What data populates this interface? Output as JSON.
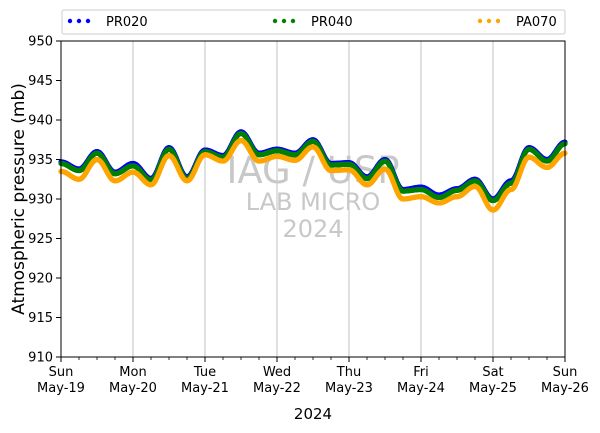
{
  "chart_data": {
    "type": "scatter",
    "ylabel": "Atmospheric pressure (mb)",
    "xlabel": "2024",
    "ylim": [
      910,
      950
    ],
    "yticks": [
      910,
      915,
      920,
      925,
      930,
      935,
      940,
      945,
      950
    ],
    "x_range_days": [
      "2024-05-19",
      "2024-05-26"
    ],
    "xtick_labels": [
      {
        "day": "Sun",
        "date": "May-19"
      },
      {
        "day": "Mon",
        "date": "May-20"
      },
      {
        "day": "Tue",
        "date": "May-21"
      },
      {
        "day": "Wed",
        "date": "May-22"
      },
      {
        "day": "Thu",
        "date": "May-23"
      },
      {
        "day": "Fri",
        "date": "May-24"
      },
      {
        "day": "Sat",
        "date": "May-25"
      },
      {
        "day": "Sun",
        "date": "May-26"
      }
    ],
    "grid": "vertical",
    "legend_position": "top",
    "watermark": [
      "IAG / USP",
      "LAB MICRO",
      "2024"
    ],
    "x_dates": [
      "2024-05-19 00:00",
      "2024-05-19 06:00",
      "2024-05-19 12:00",
      "2024-05-19 18:00",
      "2024-05-20 00:00",
      "2024-05-20 06:00",
      "2024-05-20 12:00",
      "2024-05-20 18:00",
      "2024-05-21 00:00",
      "2024-05-21 06:00",
      "2024-05-21 12:00",
      "2024-05-21 18:00",
      "2024-05-22 00:00",
      "2024-05-22 06:00",
      "2024-05-22 12:00",
      "2024-05-22 18:00",
      "2024-05-23 00:00",
      "2024-05-23 06:00",
      "2024-05-23 12:00",
      "2024-05-23 18:00",
      "2024-05-24 00:00",
      "2024-05-24 06:00",
      "2024-05-24 12:00",
      "2024-05-24 18:00",
      "2024-05-25 00:00",
      "2024-05-25 06:00",
      "2024-05-25 12:00",
      "2024-05-25 18:00",
      "2024-05-26 00:00"
    ],
    "series": [
      {
        "name": "PR020",
        "color": "#0000ff",
        "values": [
          934.7,
          933.8,
          936.0,
          933.4,
          934.5,
          932.6,
          936.5,
          932.8,
          936.2,
          935.5,
          938.5,
          935.8,
          936.3,
          935.8,
          937.5,
          934.5,
          934.6,
          932.8,
          935.0,
          931.2,
          931.5,
          930.5,
          931.3,
          932.5,
          930.0,
          932.3,
          936.5,
          935.0,
          937.2
        ]
      },
      {
        "name": "PR040",
        "color": "#008000",
        "values": [
          934.5,
          933.6,
          935.8,
          933.2,
          934.2,
          932.4,
          936.3,
          932.6,
          936.0,
          935.3,
          938.3,
          935.6,
          936.1,
          935.6,
          937.3,
          934.3,
          934.4,
          932.6,
          934.8,
          931.0,
          931.2,
          930.2,
          931.1,
          932.3,
          929.8,
          932.0,
          936.3,
          934.8,
          937.0
        ]
      },
      {
        "name": "PA070",
        "color": "#ffa500",
        "values": [
          933.5,
          932.5,
          935.0,
          932.3,
          933.4,
          931.8,
          935.5,
          932.3,
          935.6,
          934.8,
          937.4,
          934.8,
          935.4,
          934.9,
          936.6,
          933.6,
          933.7,
          931.8,
          933.8,
          930.0,
          930.3,
          929.5,
          930.3,
          931.6,
          928.6,
          931.2,
          935.3,
          934.0,
          935.8
        ]
      }
    ]
  }
}
